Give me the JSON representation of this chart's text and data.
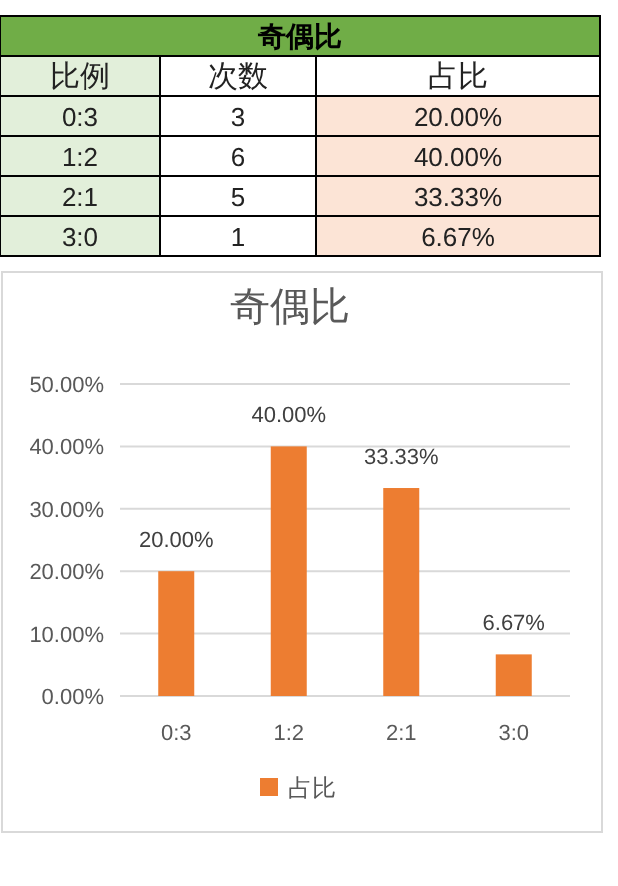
{
  "chart_data": [
    {
      "type": "other",
      "title": "奇偶比",
      "annotations": [
        "比例",
        "次数",
        "占比",
        "0:3",
        "3",
        "20.00%",
        "1:2",
        "6",
        "40.00%",
        "2:1",
        "5",
        "33.33%",
        "3:0",
        "1",
        "6.67%"
      ]
    },
    {
      "type": "bar",
      "title": "奇偶比",
      "categories": [
        "0:3",
        "1:2",
        "2:1",
        "3:0"
      ],
      "series": [
        {
          "name": "占比",
          "color": "#ed7d31",
          "values": [
            20,
            40,
            33.33,
            6.67
          ]
        }
      ],
      "value_labels": [
        "20.00%",
        "40.00%",
        "33.33%",
        "6.67%"
      ],
      "ylim": [
        0,
        50
      ],
      "yticks": [
        {
          "value": 0,
          "label": "0.00%"
        },
        {
          "value": 10,
          "label": "10.00%"
        },
        {
          "value": 20,
          "label": "20.00%"
        },
        {
          "value": 30,
          "label": "30.00%"
        },
        {
          "value": 40,
          "label": "40.00%"
        },
        {
          "value": 50,
          "label": "50.00%"
        }
      ],
      "grid": "y",
      "legend": "bottom"
    }
  ]
}
